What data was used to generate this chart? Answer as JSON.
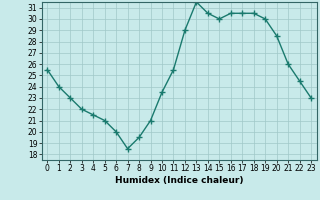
{
  "x": [
    0,
    1,
    2,
    3,
    4,
    5,
    6,
    7,
    8,
    9,
    10,
    11,
    12,
    13,
    14,
    15,
    16,
    17,
    18,
    19,
    20,
    21,
    22,
    23
  ],
  "y": [
    25.5,
    24,
    23,
    22,
    21.5,
    21,
    20,
    18.5,
    19.5,
    21,
    23.5,
    25.5,
    29,
    31.5,
    30.5,
    30,
    30.5,
    30.5,
    30.5,
    30,
    28.5,
    26,
    24.5,
    23
  ],
  "line_color": "#1a7a6e",
  "marker": "+",
  "marker_size": 4,
  "bg_color": "#c8eaea",
  "grid_color": "#a0c8c8",
  "xlabel": "Humidex (Indice chaleur)",
  "xlim": [
    -0.5,
    23.5
  ],
  "ylim": [
    17.5,
    31.5
  ],
  "yticks": [
    18,
    19,
    20,
    21,
    22,
    23,
    24,
    25,
    26,
    27,
    28,
    29,
    30,
    31
  ],
  "xticks": [
    0,
    1,
    2,
    3,
    4,
    5,
    6,
    7,
    8,
    9,
    10,
    11,
    12,
    13,
    14,
    15,
    16,
    17,
    18,
    19,
    20,
    21,
    22,
    23
  ],
  "tick_fontsize": 5.5,
  "xlabel_fontsize": 6.5,
  "line_width": 1.0,
  "marker_color": "#1a7a6e"
}
